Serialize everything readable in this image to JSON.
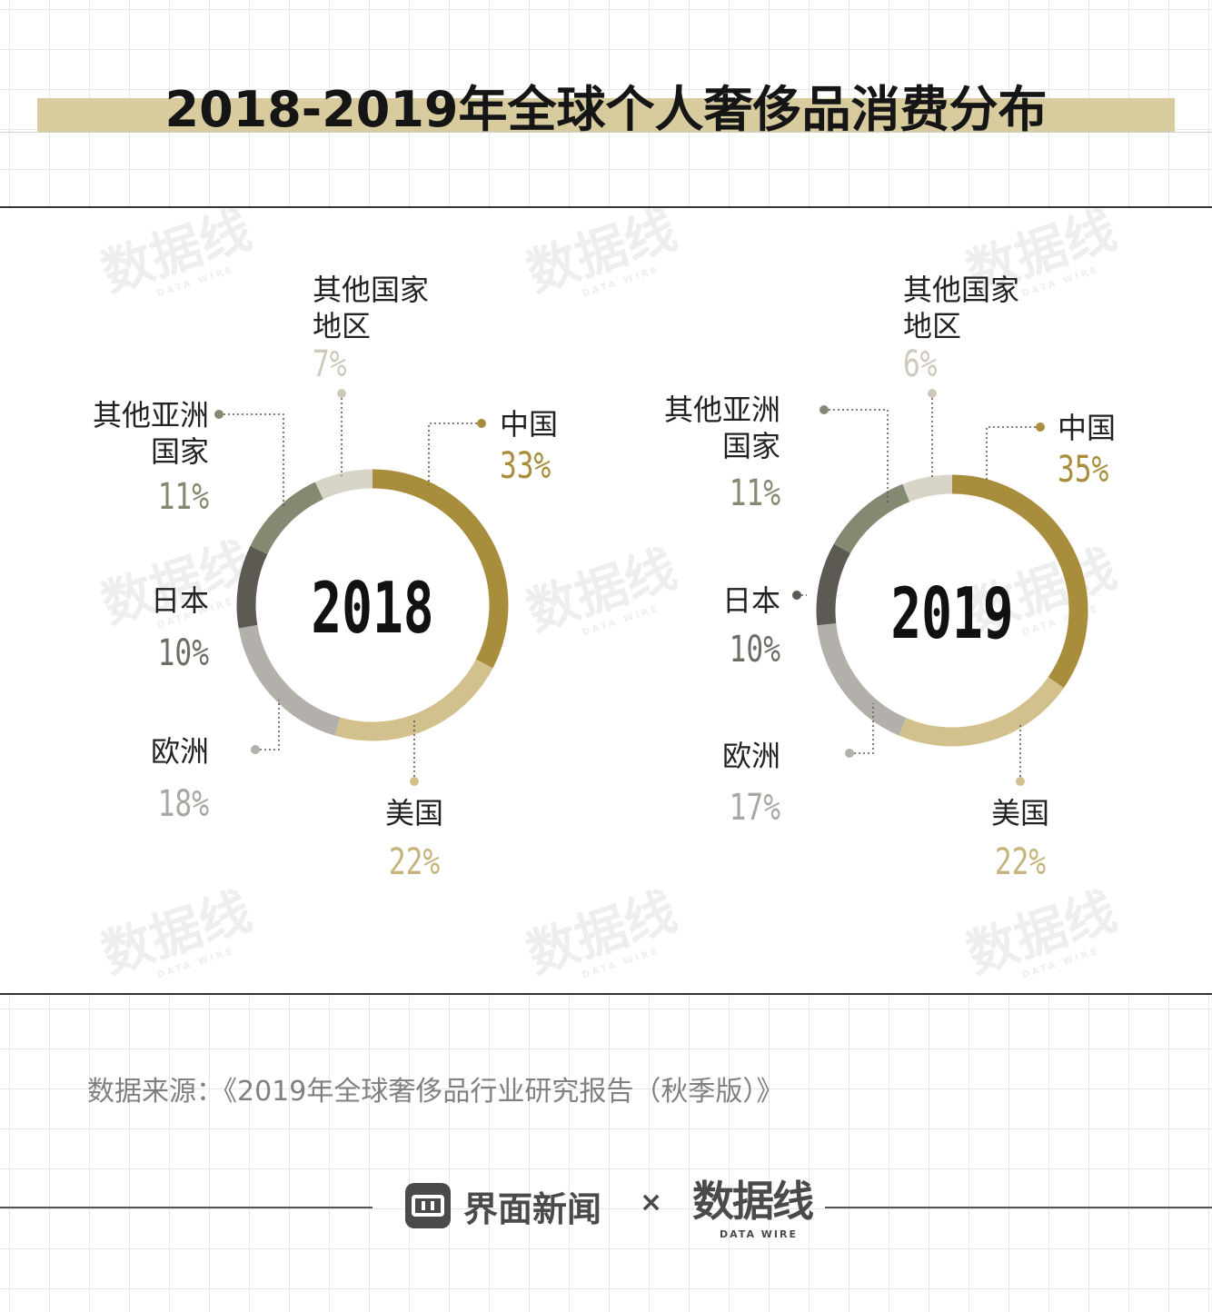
{
  "title": "2018-2019年全球个人奢侈品消费分布",
  "source": "数据来源：《2019年全球奢侈品行业研究报告（秋季版）》",
  "footer": {
    "brand1_name": "界面新闻",
    "times": "×",
    "brand2_name": "数据线",
    "brand2_sub": "DATA WIRE"
  },
  "watermark": {
    "main": "数据线",
    "sub": "DATA WIRE"
  },
  "colors": {
    "china": "#a88e3c",
    "usa": "#d3c18d",
    "europe": "#b3b0ab",
    "japan": "#5c5a52",
    "asia_other": "#848971",
    "others": "#d9d4c8"
  },
  "chart_data": [
    {
      "type": "pie",
      "title": "2018",
      "slices": [
        {
          "label": "中国",
          "value": 33,
          "pct_text": "33%",
          "color": "#a88e3c"
        },
        {
          "label": "美国",
          "value": 22,
          "pct_text": "22%",
          "color": "#d3c18d"
        },
        {
          "label": "欧洲",
          "value": 18,
          "pct_text": "18%",
          "color": "#b3b0ab"
        },
        {
          "label": "日本",
          "value": 10,
          "pct_text": "10%",
          "color": "#5c5a52"
        },
        {
          "label": "其他亚洲国家",
          "label_lines": [
            "其他亚洲",
            "国家"
          ],
          "value": 11,
          "pct_text": "11%",
          "color": "#848971"
        },
        {
          "label": "其他国家地区",
          "label_lines": [
            "其他国家",
            "地区"
          ],
          "value": 7,
          "pct_text": "7%",
          "color": "#d9d4c8"
        }
      ]
    },
    {
      "type": "pie",
      "title": "2019",
      "slices": [
        {
          "label": "中国",
          "value": 35,
          "pct_text": "35%",
          "color": "#a88e3c"
        },
        {
          "label": "美国",
          "value": 22,
          "pct_text": "22%",
          "color": "#d3c18d"
        },
        {
          "label": "欧洲",
          "value": 17,
          "pct_text": "17%",
          "color": "#b3b0ab"
        },
        {
          "label": "日本",
          "value": 10,
          "pct_text": "10%",
          "color": "#5c5a52"
        },
        {
          "label": "其他亚洲国家",
          "label_lines": [
            "其他亚洲",
            "国家"
          ],
          "value": 11,
          "pct_text": "11%",
          "color": "#848971"
        },
        {
          "label": "其他国家地区",
          "label_lines": [
            "其他国家",
            "地区"
          ],
          "value": 6,
          "pct_text": "6%",
          "color": "#d9d4c8"
        }
      ]
    }
  ]
}
